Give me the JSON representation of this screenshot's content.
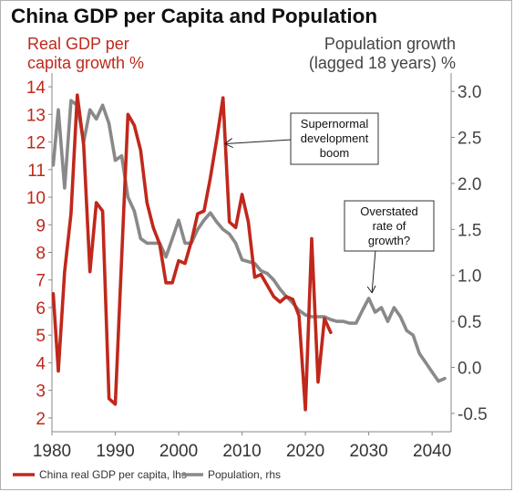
{
  "chart_data": {
    "type": "line",
    "title": "China GDP per Capita and Population",
    "y_left_label": [
      "Real GDP per",
      "capita growth %"
    ],
    "y_right_label": [
      "Population growth",
      "(lagged 18 years) %"
    ],
    "xlim": [
      1980,
      2043
    ],
    "ylim_left": [
      1.5,
      14.5
    ],
    "ylim_right": [
      -0.7,
      3.2
    ],
    "x_ticks": [
      1980,
      1990,
      2000,
      2010,
      2020,
      2030,
      2040
    ],
    "y_left_ticks": [
      2,
      3,
      4,
      5,
      6,
      7,
      8,
      9,
      10,
      11,
      12,
      13,
      14
    ],
    "y_right_ticks": [
      "3.0",
      "2.5",
      "2.0",
      "1.5",
      "1.0",
      "0.5",
      "0.0",
      "-0.5"
    ],
    "y_right_tick_values": [
      3.0,
      2.5,
      2.0,
      1.5,
      1.0,
      0.5,
      0.0,
      -0.5
    ],
    "colors": {
      "gdp": "#c0281c",
      "population": "#898989"
    },
    "series": [
      {
        "name": "China real GDP per capita, lhs",
        "axis": "left",
        "x": [
          1980.2,
          1981,
          1982,
          1983,
          1984,
          1985,
          1986,
          1987,
          1988,
          1989,
          1990,
          1991,
          1992,
          1993,
          1994,
          1995,
          1996,
          1997,
          1998,
          1999,
          2000,
          2001,
          2002,
          2003,
          2004,
          2005,
          2006,
          2007,
          2008,
          2009,
          2010,
          2011,
          2012,
          2013,
          2014,
          2015,
          2016,
          2017,
          2018,
          2019,
          2020,
          2021,
          2022,
          2023,
          2024
        ],
        "values": [
          6.5,
          3.7,
          7.3,
          9.4,
          13.7,
          11.9,
          7.3,
          9.8,
          9.5,
          2.7,
          2.5,
          7.8,
          13.0,
          12.6,
          11.7,
          9.8,
          8.9,
          8.3,
          6.9,
          6.9,
          7.7,
          7.6,
          8.4,
          9.4,
          9.5,
          10.7,
          12.1,
          13.6,
          9.1,
          8.9,
          10.1,
          9.1,
          7.1,
          7.2,
          6.8,
          6.4,
          6.2,
          6.4,
          6.3,
          5.7,
          2.3,
          8.5,
          3.3,
          5.6,
          5.1
        ]
      },
      {
        "name": "Population, rhs",
        "axis": "right",
        "x": [
          1980.2,
          1981,
          1982,
          1983,
          1984,
          1985,
          1986,
          1987,
          1988,
          1989,
          1990,
          1991,
          1992,
          1993,
          1994,
          1995,
          1996,
          1997,
          1998,
          1999,
          2000,
          2001,
          2002,
          2003,
          2004,
          2005,
          2006,
          2007,
          2008,
          2009,
          2010,
          2011,
          2012,
          2013,
          2014,
          2015,
          2016,
          2017,
          2018,
          2019,
          2020,
          2021,
          2022,
          2023,
          2024,
          2025,
          2026,
          2027,
          2028,
          2029,
          2030,
          2031,
          2032,
          2033,
          2034,
          2035,
          2036,
          2037,
          2038,
          2039,
          2040,
          2041,
          2042
        ],
        "values": [
          2.2,
          2.8,
          1.95,
          2.9,
          2.85,
          2.45,
          2.8,
          2.7,
          2.85,
          2.65,
          2.25,
          2.3,
          1.85,
          1.7,
          1.4,
          1.35,
          1.35,
          1.35,
          1.2,
          1.4,
          1.6,
          1.35,
          1.35,
          1.5,
          1.6,
          1.68,
          1.58,
          1.5,
          1.45,
          1.35,
          1.17,
          1.15,
          1.13,
          1.05,
          1.02,
          0.95,
          0.85,
          0.77,
          0.7,
          0.62,
          0.57,
          0.55,
          0.55,
          0.55,
          0.52,
          0.5,
          0.5,
          0.48,
          0.48,
          0.62,
          0.75,
          0.6,
          0.65,
          0.5,
          0.65,
          0.55,
          0.4,
          0.35,
          0.15,
          0.05,
          -0.05,
          -0.15,
          -0.12
        ]
      }
    ],
    "annotations": [
      {
        "lines": [
          "Supernormal",
          "development",
          "boom"
        ],
        "arrow_to": [
          2007,
          12.0
        ]
      },
      {
        "lines": [
          "Overstated",
          "rate of",
          "growth?"
        ],
        "arrow_to": [
          2030.5,
          0.75
        ]
      }
    ]
  }
}
